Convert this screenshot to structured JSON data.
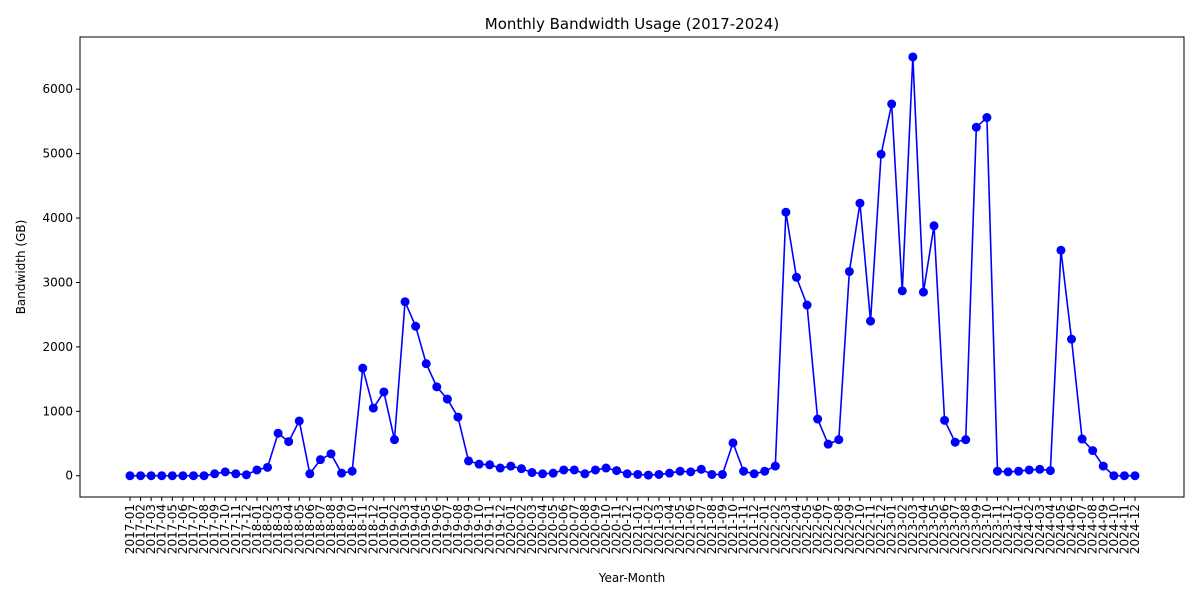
{
  "chart_data": {
    "type": "line",
    "title": "Monthly Bandwidth Usage (2017-2024)",
    "xlabel": "Year-Month",
    "ylabel": "Bandwidth (GB)",
    "ylim": [
      -330,
      6810
    ],
    "yticks": [
      0,
      1000,
      2000,
      3000,
      4000,
      5000,
      6000
    ],
    "grid": false,
    "legend": "none",
    "line_color": "#0000ff",
    "marker": "circle",
    "categories": [
      "2017-01",
      "2017-02",
      "2017-03",
      "2017-04",
      "2017-05",
      "2017-06",
      "2017-07",
      "2017-08",
      "2017-09",
      "2017-10",
      "2017-11",
      "2017-12",
      "2018-01",
      "2018-02",
      "2018-03",
      "2018-04",
      "2018-05",
      "2018-06",
      "2018-07",
      "2018-08",
      "2018-09",
      "2018-10",
      "2018-11",
      "2018-12",
      "2019-01",
      "2019-02",
      "2019-03",
      "2019-04",
      "2019-05",
      "2019-06",
      "2019-07",
      "2019-08",
      "2019-09",
      "2019-10",
      "2019-11",
      "2019-12",
      "2020-01",
      "2020-02",
      "2020-03",
      "2020-04",
      "2020-05",
      "2020-06",
      "2020-07",
      "2020-08",
      "2020-09",
      "2020-10",
      "2020-11",
      "2020-12",
      "2021-01",
      "2021-02",
      "2021-03",
      "2021-04",
      "2021-05",
      "2021-06",
      "2021-07",
      "2021-08",
      "2021-09",
      "2021-10",
      "2021-11",
      "2021-12",
      "2022-01",
      "2022-02",
      "2022-03",
      "2022-04",
      "2022-05",
      "2022-06",
      "2022-07",
      "2022-08",
      "2022-09",
      "2022-10",
      "2022-11",
      "2022-12",
      "2023-01",
      "2023-02",
      "2023-03",
      "2023-04",
      "2023-05",
      "2023-06",
      "2023-07",
      "2023-08",
      "2023-09",
      "2023-10",
      "2023-11",
      "2023-12",
      "2024-01",
      "2024-02",
      "2024-03",
      "2024-04",
      "2024-05",
      "2024-06",
      "2024-07",
      "2024-08",
      "2024-09",
      "2024-10",
      "2024-11",
      "2024-12"
    ],
    "values": [
      0,
      0,
      0,
      0,
      0,
      0,
      0,
      0,
      30,
      60,
      30,
      15,
      90,
      130,
      660,
      530,
      850,
      30,
      250,
      340,
      40,
      70,
      1670,
      1050,
      1300,
      560,
      2700,
      2320,
      1740,
      1380,
      1190,
      910,
      230,
      180,
      170,
      120,
      150,
      110,
      50,
      30,
      40,
      90,
      90,
      30,
      90,
      120,
      80,
      30,
      20,
      10,
      20,
      40,
      70,
      60,
      100,
      20,
      20,
      510,
      70,
      30,
      70,
      150,
      4090,
      3080,
      2650,
      880,
      490,
      560,
      3170,
      4230,
      2400,
      4990,
      5770,
      2870,
      6500,
      2850,
      3880,
      860,
      520,
      560,
      5410,
      5560,
      70,
      60,
      70,
      90,
      100,
      80,
      3500,
      2120,
      570,
      390,
      150,
      0,
      0,
      0
    ]
  }
}
